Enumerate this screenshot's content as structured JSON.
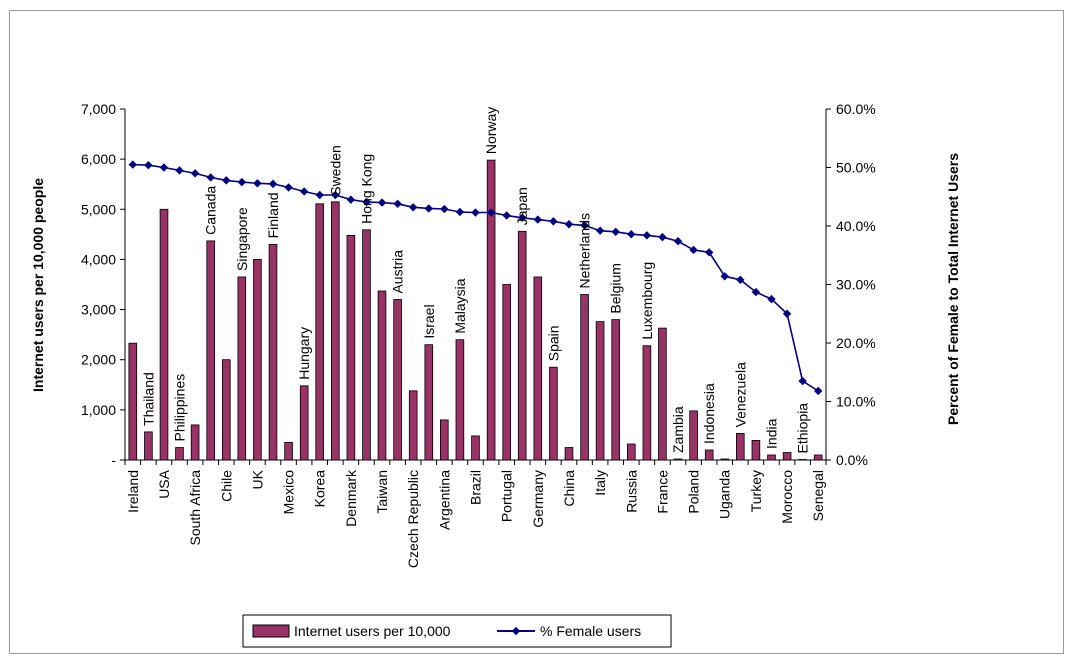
{
  "chart_data": {
    "type": "bar",
    "ylabel": "Internet users per 10,000 people",
    "y2label": "Percent of Female to Total Internet Users",
    "ylim": [
      0,
      7000
    ],
    "y2lim": [
      0,
      60
    ],
    "yticks": [
      {
        "value": 0,
        "label": "-"
      },
      {
        "value": 1000,
        "label": "1,000"
      },
      {
        "value": 2000,
        "label": "2,000"
      },
      {
        "value": 3000,
        "label": "3,000"
      },
      {
        "value": 4000,
        "label": "4,000"
      },
      {
        "value": 5000,
        "label": "5,000"
      },
      {
        "value": 6000,
        "label": "6,000"
      },
      {
        "value": 7000,
        "label": "7,000"
      }
    ],
    "y2ticks": [
      {
        "value": 0,
        "label": "0.0%"
      },
      {
        "value": 10,
        "label": "10.0%"
      },
      {
        "value": 20,
        "label": "20.0%"
      },
      {
        "value": 30,
        "label": "30.0%"
      },
      {
        "value": 40,
        "label": "40.0%"
      },
      {
        "value": 50,
        "label": "50.0%"
      },
      {
        "value": 60,
        "label": "60.0%"
      }
    ],
    "categories": [
      "Ireland",
      "Thailand",
      "USA",
      "Philippines",
      "South Africa",
      "Canada",
      "Chile",
      "Singapore",
      "UK",
      "Finland",
      "Mexico",
      "Hungary",
      "Korea",
      "Sweden",
      "Denmark",
      "Hong Kong",
      "Taiwan",
      "Austria",
      "Czech Republic",
      "Israel",
      "Argentina",
      "Malaysia",
      "Brazil",
      "Norway",
      "Portugal",
      "Japan",
      "Germany",
      "Spain",
      "China",
      "Netherlands",
      "Italy",
      "Belgium",
      "Russia",
      "Luxembourg",
      "France",
      "Zambia",
      "Poland",
      "Indonesia",
      "Uganda",
      "Venezuela",
      "Turkey",
      "India",
      "Morocco",
      "Ethiopia",
      "Senegal"
    ],
    "bottom_labeled": [
      "Ireland",
      "USA",
      "South Africa",
      "Chile",
      "UK",
      "Mexico",
      "Korea",
      "Denmark",
      "Taiwan",
      "Czech Republic",
      "Argentina",
      "Brazil",
      "Portugal",
      "Germany",
      "China",
      "Italy",
      "Russia",
      "France",
      "Poland",
      "Uganda",
      "Turkey",
      "Morocco",
      "Senegal"
    ],
    "top_labeled": [
      "Thailand",
      "Philippines",
      "Canada",
      "Singapore",
      "Finland",
      "Hungary",
      "Sweden",
      "Hong Kong",
      "Austria",
      "Israel",
      "Malaysia",
      "Norway",
      "Japan",
      "Spain",
      "Netherlands",
      "Belgium",
      "Luxembourg",
      "Zambia",
      "Indonesia",
      "Venezuela",
      "India",
      "Ethiopia"
    ],
    "series": [
      {
        "name": "Internet users per 10,000",
        "type": "bar",
        "axis": "left",
        "color": "#993366",
        "values": [
          2330,
          560,
          5000,
          250,
          700,
          4370,
          2000,
          3650,
          4000,
          4300,
          350,
          1480,
          5110,
          5150,
          4480,
          4590,
          3370,
          3200,
          1380,
          2300,
          800,
          2400,
          480,
          5980,
          3500,
          4560,
          3650,
          1850,
          250,
          3300,
          2760,
          2800,
          320,
          2280,
          2630,
          20,
          980,
          200,
          20,
          530,
          390,
          100,
          150,
          10,
          100
        ]
      },
      {
        "name": "% Female users",
        "type": "line",
        "axis": "right",
        "color": "#000080",
        "values": [
          50.5,
          50.4,
          50.0,
          49.5,
          49.0,
          48.3,
          47.8,
          47.5,
          47.3,
          47.2,
          46.6,
          45.9,
          45.3,
          45.3,
          44.5,
          44.1,
          44.0,
          43.8,
          43.2,
          43.0,
          42.9,
          42.4,
          42.3,
          42.3,
          41.8,
          41.4,
          41.1,
          40.8,
          40.3,
          40.1,
          39.2,
          39.0,
          38.6,
          38.4,
          38.1,
          37.4,
          35.9,
          35.5,
          31.4,
          30.8,
          28.7,
          27.5,
          25.0,
          13.5,
          11.8
        ]
      }
    ],
    "legend": {
      "position": "bottom",
      "bar_label": "Internet users per 10,000",
      "line_label": "% Female users"
    }
  }
}
